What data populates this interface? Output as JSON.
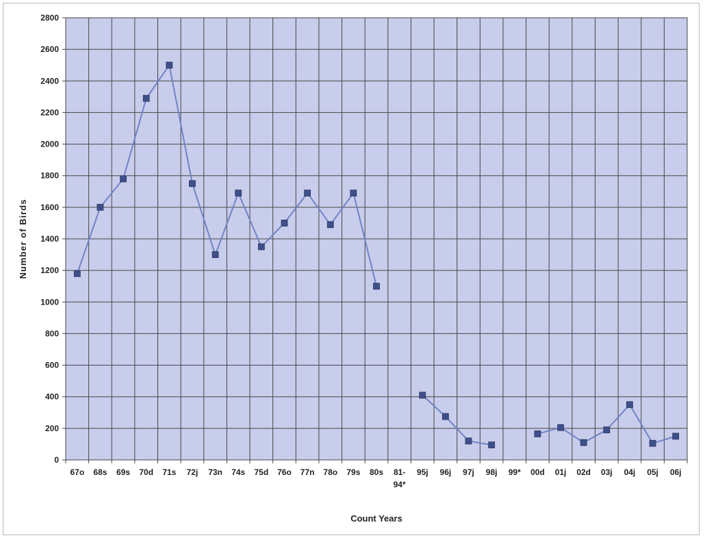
{
  "chart_data": {
    "type": "line",
    "title": "",
    "xlabel": "Count Years",
    "ylabel": "Number of Birds",
    "ylim": [
      0,
      2800
    ],
    "ytick_step": 200,
    "grid": true,
    "legend": "none",
    "categories": [
      "67o",
      "68s",
      "69s",
      "70d",
      "71s",
      "72j",
      "73n",
      "74s",
      "75d",
      "76o",
      "77n",
      "78o",
      "79s",
      "80s",
      "81-94*",
      "95j",
      "96j",
      "97j",
      "98j",
      "99*",
      "00d",
      "01j",
      "02d",
      "03j",
      "04j",
      "05j",
      "06j"
    ],
    "series": [
      {
        "name": "",
        "values": [
          1180,
          1600,
          1780,
          2290,
          2500,
          1750,
          1300,
          1690,
          1350,
          1500,
          1690,
          1490,
          1690,
          1100,
          null,
          410,
          275,
          120,
          95,
          null,
          165,
          205,
          110,
          190,
          350,
          105,
          150
        ],
        "color": "#6f83c4",
        "marker": "square"
      }
    ]
  },
  "colors": {
    "plot_background": "#c9cdec",
    "gridline": "#444444",
    "line": "#6f83c4",
    "marker": "#3f4f8a"
  }
}
